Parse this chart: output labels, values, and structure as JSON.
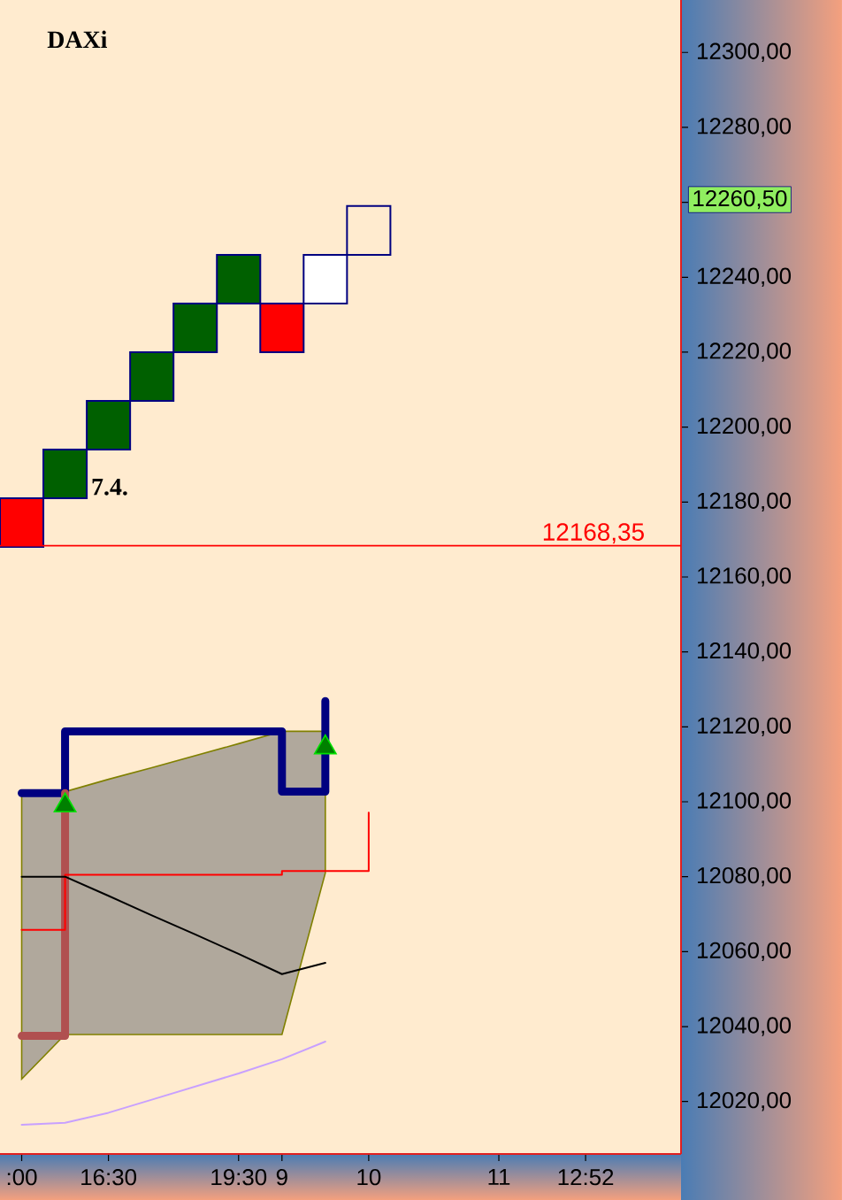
{
  "chart_data": {
    "type": "bar",
    "title": "DAXi",
    "categories": [
      ":00",
      null,
      "16:30",
      null,
      null,
      "19:30",
      "9",
      null,
      "10",
      null,
      null,
      "11",
      null,
      "12:52",
      null,
      null
    ],
    "ylim": [
      12006,
      12314
    ],
    "yticks": [
      {
        "value": 12020,
        "label": "12020,00"
      },
      {
        "value": 12040,
        "label": "12040,00"
      },
      {
        "value": 12060,
        "label": "12060,00"
      },
      {
        "value": 12080,
        "label": "12080,00"
      },
      {
        "value": 12100,
        "label": "12100,00"
      },
      {
        "value": 12120,
        "label": "12120,00"
      },
      {
        "value": 12140,
        "label": "12140,00"
      },
      {
        "value": 12160,
        "label": "12160,00"
      },
      {
        "value": 12180,
        "label": "12180,00"
      },
      {
        "value": 12200,
        "label": "12200,00"
      },
      {
        "value": 12220,
        "label": "12220,00"
      },
      {
        "value": 12240,
        "label": "12240,00"
      },
      {
        "value": 12260,
        "label": null
      },
      {
        "value": 12280,
        "label": "12280,00"
      },
      {
        "value": 12300,
        "label": "12300,00"
      }
    ],
    "series": [
      {
        "base": [
          12168,
          12181,
          12194,
          12207,
          12220,
          12233,
          12220,
          12233,
          12246,
          null,
          null,
          null,
          null,
          null,
          null,
          null
        ],
        "values": [
          13,
          13,
          13,
          13,
          13,
          13,
          13,
          13,
          13,
          null,
          null,
          null,
          null,
          null,
          null,
          null
        ],
        "colors": [
          "#ff0000",
          "#006000",
          "#006000",
          "#006000",
          "#006000",
          "#006000",
          "#ff0000",
          "#ffffff",
          "#ffebcf",
          null,
          null,
          null,
          null,
          null,
          null,
          null
        ]
      },
      {
        "type": "area",
        "color": "#b0a89c",
        "values": [
          null,
          null,
          null,
          null,
          null,
          null,
          null,
          null,
          null,
          null,
          null,
          null,
          null,
          null,
          null,
          null
        ],
        "upper": [
          12102.7,
          12102.7,
          12106,
          12109.1,
          12112.3,
          12115.5,
          12118.8,
          12118.8,
          null,
          null,
          null,
          null,
          null,
          null,
          null,
          null
        ],
        "lower": [
          12026,
          12037.9,
          12037.9,
          12037.9,
          12037.9,
          12037.9,
          12037.9,
          12081,
          null,
          null,
          null,
          null,
          null,
          null,
          null,
          null
        ]
      },
      {
        "type": "step",
        "color": "#000080",
        "values": [
          12102.3,
          12118.8,
          12118.8,
          12118.8,
          12118.8,
          12118.8,
          12102.7,
          12126.9,
          null,
          null,
          null,
          null,
          null,
          null,
          null,
          null
        ]
      },
      {
        "type": "step",
        "color": "#b05050",
        "values": [
          12037.5,
          12102.3,
          null,
          null,
          null,
          null,
          null,
          null,
          null,
          null,
          null,
          null,
          null,
          null,
          null,
          null
        ]
      },
      {
        "type": "step",
        "color": "#ff0000",
        "values": [
          12065.8,
          12080.5,
          12080.5,
          12080.5,
          12080.5,
          12080.5,
          12081.5,
          12081.5,
          12097.1,
          null,
          null,
          null,
          null,
          null,
          null,
          null
        ]
      },
      {
        "type": "line",
        "color": "#000000",
        "values": [
          12080,
          12080,
          12074.9,
          12069.7,
          12064.6,
          12059.4,
          12054,
          12057,
          null,
          null,
          null,
          null,
          null,
          null,
          null,
          null
        ]
      },
      {
        "type": "line",
        "color": "#c8a0ff",
        "values": [
          12013.8,
          12014.3,
          12017,
          12020.5,
          12024,
          12027.5,
          12031.3,
          12036,
          null,
          null,
          null,
          null,
          null,
          null,
          null,
          null
        ]
      },
      {
        "type": "scatter",
        "color": "#008000",
        "marker": "triangle",
        "values": [
          null,
          12099,
          null,
          null,
          null,
          null,
          null,
          12114.5,
          null,
          null,
          null,
          null,
          null,
          null,
          null,
          null
        ]
      }
    ],
    "ref_lines": [
      {
        "axis": "y",
        "value": 12168.35,
        "label": "12168,35",
        "color": "#ff0000"
      }
    ],
    "annotations": [
      "7.4.",
      "12260,50"
    ]
  }
}
